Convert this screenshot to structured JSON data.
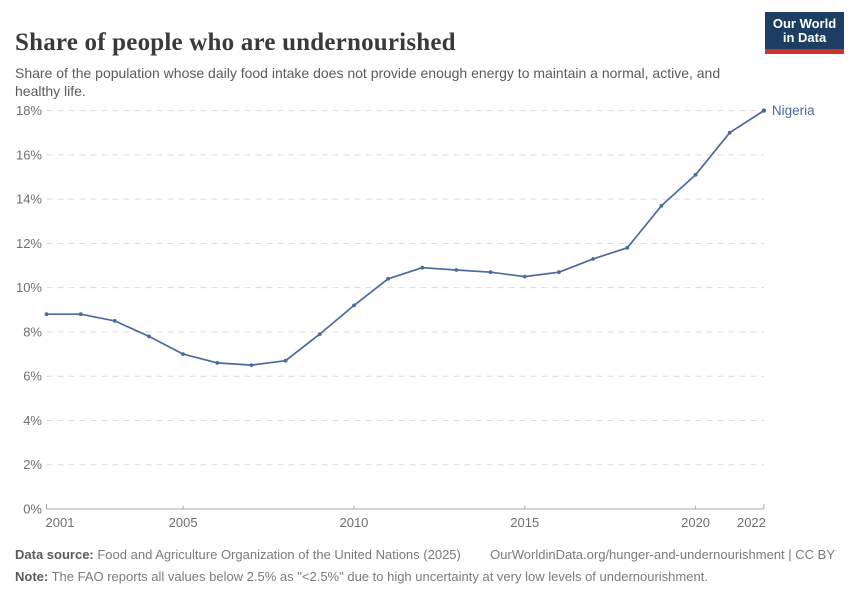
{
  "header": {
    "title": "Share of people who are undernourished",
    "subtitle": "Share of the population whose daily food intake does not provide enough energy to maintain a normal, active, and healthy life.",
    "logo": {
      "line1": "Our World",
      "line2": "in Data"
    }
  },
  "chart_data": {
    "type": "line",
    "title": "Share of people who are undernourished",
    "x": [
      2001,
      2002,
      2003,
      2004,
      2005,
      2006,
      2007,
      2008,
      2009,
      2010,
      2011,
      2012,
      2013,
      2014,
      2015,
      2016,
      2017,
      2018,
      2019,
      2020,
      2021,
      2022
    ],
    "series": [
      {
        "name": "Nigeria",
        "color": "#4c6a9c",
        "values": [
          8.8,
          8.8,
          8.5,
          7.8,
          7.0,
          6.6,
          6.5,
          6.7,
          7.9,
          9.2,
          10.4,
          10.9,
          10.8,
          10.7,
          10.5,
          10.7,
          11.3,
          11.8,
          13.7,
          15.1,
          17.0,
          18.0
        ]
      }
    ],
    "xlim": [
      2001,
      2022
    ],
    "ylim": [
      0,
      18
    ],
    "x_ticks": [
      2001,
      2005,
      2010,
      2015,
      2020,
      2022
    ],
    "x_tick_labels": [
      "2001",
      "2005",
      "2010",
      "2015",
      "2020",
      "2022"
    ],
    "y_ticks": [
      0,
      2,
      4,
      6,
      8,
      10,
      12,
      14,
      16,
      18
    ],
    "y_tick_labels": [
      "0%",
      "2%",
      "4%",
      "6%",
      "8%",
      "10%",
      "12%",
      "14%",
      "16%",
      "18%"
    ],
    "grid": "horizontal-dashed",
    "legend_position": "end-of-line-label",
    "end_label": "Nigeria"
  },
  "footer": {
    "source_label": "Data source:",
    "source_text": " Food and Agriculture Organization of the United Nations (2025)",
    "link_text": "OurWorldinData.org/hunger-and-undernourishment | CC BY",
    "note_label": "Note:",
    "note_text": " The FAO reports all values below 2.5% as \"<2.5%\" due to high uncertainty at very low levels of undernourishment."
  },
  "colors": {
    "line": "#4c6a9c",
    "grid": "#dcdcdc",
    "axis": "#a9a9a9",
    "tick_text": "#6e6e6e",
    "logo_bg": "#1d3d63",
    "logo_bar": "#cf342c"
  }
}
